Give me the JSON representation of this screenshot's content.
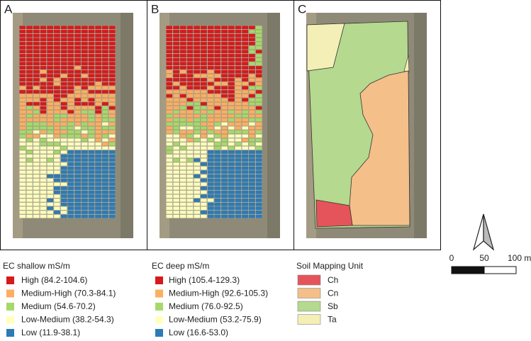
{
  "panels": [
    {
      "label": "A"
    },
    {
      "label": "B"
    },
    {
      "label": "C"
    }
  ],
  "legends": [
    {
      "title": "EC shallow mS/m",
      "items": [
        {
          "label": "High (84.2-104.6)",
          "color": "#d7191c"
        },
        {
          "label": "Medium-High (70.3-84.1)",
          "color": "#fdae61"
        },
        {
          "label": "Medium (54.6-70.2)",
          "color": "#a6d96a"
        },
        {
          "label": "Low-Medium (38.2-54.3)",
          "color": "#ffffbf"
        },
        {
          "label": "Low (11.9-38.1)",
          "color": "#2c7bb6"
        }
      ]
    },
    {
      "title": "EC deep mS/m",
      "items": [
        {
          "label": "High (105.4-129.3)",
          "color": "#d7191c"
        },
        {
          "label": "Medium-High (92.6-105.3)",
          "color": "#fdae61"
        },
        {
          "label": "Medium (76.0-92.5)",
          "color": "#a6d96a"
        },
        {
          "label": "Low-Medium (53.2-75.9)",
          "color": "#ffffbf"
        },
        {
          "label": "Low (16.6-53.0)",
          "color": "#2c7bb6"
        }
      ]
    },
    {
      "title": "Soil Mapping Unit",
      "items": [
        {
          "label": "Ch",
          "color": "#e5545a"
        },
        {
          "label": "Cn",
          "color": "#f5bf89"
        },
        {
          "label": "Sb",
          "color": "#b4d98f"
        },
        {
          "label": "Ta",
          "color": "#f3efb6"
        }
      ]
    }
  ],
  "scale_bar": {
    "labels": [
      "0",
      "50",
      "100 m"
    ]
  }
}
